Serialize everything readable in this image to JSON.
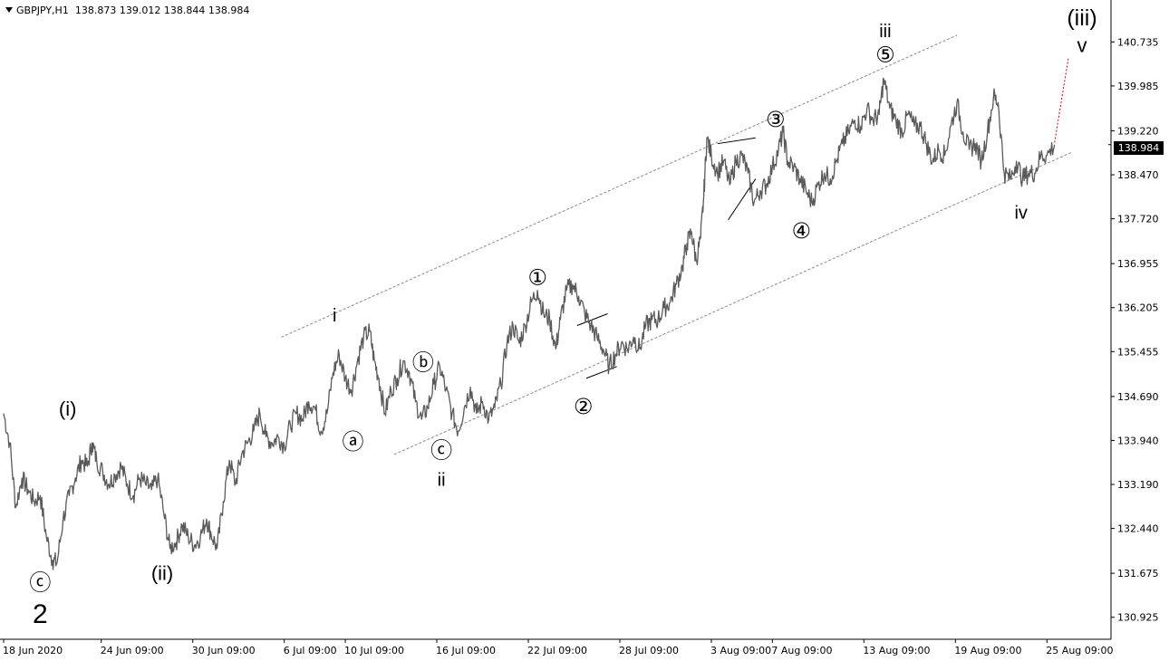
{
  "chart_header": {
    "symbol": "GBPJPY,H1",
    "open": "138.873",
    "high": "139.012",
    "low": "138.844",
    "close": "138.984"
  },
  "current_price": "138.984",
  "colors": {
    "background": "#ffffff",
    "price_line": "#5a5a5a",
    "channel": "#8a8a8a",
    "projection": "#d00000",
    "price_tag_bg": "#000000"
  },
  "chart_data": {
    "type": "line",
    "x_range": [
      "18 Jun 2020",
      "25 Aug 09:00"
    ],
    "ylim": [
      130.55,
      141.45
    ],
    "y_ticks": [
      "140.735",
      "139.985",
      "139.220",
      "138.470",
      "137.720",
      "136.955",
      "136.205",
      "135.455",
      "134.690",
      "133.940",
      "133.190",
      "132.440",
      "131.675",
      "130.925"
    ],
    "x_ticks": [
      {
        "label": "18 Jun 2020",
        "t": 0
      },
      {
        "label": "24 Jun 09:00",
        "t": 6.4
      },
      {
        "label": "30 Jun 09:00",
        "t": 12.4
      },
      {
        "label": "6 Jul 09:00",
        "t": 18.4
      },
      {
        "label": "10 Jul 09:00",
        "t": 22.4
      },
      {
        "label": "16 Jul 09:00",
        "t": 28.4
      },
      {
        "label": "22 Jul 09:00",
        "t": 34.4
      },
      {
        "label": "28 Jul 09:00",
        "t": 40.4
      },
      {
        "label": "3 Aug 09:00",
        "t": 46.4
      },
      {
        "label": "7 Aug 09:00",
        "t": 50.4
      },
      {
        "label": "13 Aug 09:00",
        "t": 56.4
      },
      {
        "label": "19 Aug 09:00",
        "t": 62.4
      },
      {
        "label": "25 Aug 09:00",
        "t": 68.4
      }
    ],
    "price_path": [
      [
        0.0,
        134.4
      ],
      [
        0.4,
        133.9
      ],
      [
        0.8,
        132.8
      ],
      [
        1.2,
        133.3
      ],
      [
        1.6,
        133.1
      ],
      [
        2.0,
        132.9
      ],
      [
        2.4,
        133.0
      ],
      [
        2.8,
        132.3
      ],
      [
        3.2,
        131.9
      ],
      [
        3.5,
        131.85
      ],
      [
        3.9,
        132.6
      ],
      [
        4.3,
        133.0
      ],
      [
        4.7,
        133.3
      ],
      [
        5.1,
        133.6
      ],
      [
        5.5,
        133.5
      ],
      [
        5.8,
        133.9
      ],
      [
        6.1,
        133.6
      ],
      [
        6.5,
        133.4
      ],
      [
        6.9,
        133.2
      ],
      [
        7.3,
        133.35
      ],
      [
        7.7,
        133.5
      ],
      [
        8.1,
        133.2
      ],
      [
        8.5,
        133.0
      ],
      [
        8.9,
        133.3
      ],
      [
        9.3,
        133.2
      ],
      [
        9.7,
        133.1
      ],
      [
        10.1,
        133.3
      ],
      [
        10.5,
        132.7
      ],
      [
        10.9,
        132.1
      ],
      [
        11.3,
        132.2
      ],
      [
        11.7,
        132.5
      ],
      [
        12.1,
        132.3
      ],
      [
        12.5,
        132.15
      ],
      [
        12.9,
        132.3
      ],
      [
        13.3,
        132.6
      ],
      [
        13.6,
        132.35
      ],
      [
        14.0,
        132.1
      ],
      [
        14.4,
        132.9
      ],
      [
        14.8,
        133.6
      ],
      [
        15.2,
        133.2
      ],
      [
        15.6,
        133.7
      ],
      [
        16.0,
        133.9
      ],
      [
        16.4,
        134.1
      ],
      [
        16.8,
        134.4
      ],
      [
        17.2,
        134.0
      ],
      [
        17.6,
        133.9
      ],
      [
        18.0,
        134.0
      ],
      [
        18.4,
        133.85
      ],
      [
        18.8,
        134.2
      ],
      [
        19.2,
        134.4
      ],
      [
        19.6,
        134.3
      ],
      [
        20.0,
        134.6
      ],
      [
        20.4,
        134.5
      ],
      [
        20.8,
        134.1
      ],
      [
        21.2,
        134.4
      ],
      [
        21.6,
        135.1
      ],
      [
        22.0,
        135.4
      ],
      [
        22.4,
        135.0
      ],
      [
        22.8,
        134.8
      ],
      [
        23.2,
        135.3
      ],
      [
        23.6,
        135.7
      ],
      [
        24.0,
        135.8
      ],
      [
        24.3,
        135.3
      ],
      [
        24.6,
        135.0
      ],
      [
        25.0,
        134.4
      ],
      [
        25.4,
        134.8
      ],
      [
        25.8,
        135.0
      ],
      [
        26.2,
        135.3
      ],
      [
        26.6,
        135.1
      ],
      [
        27.0,
        134.6
      ],
      [
        27.4,
        134.3
      ],
      [
        27.8,
        134.5
      ],
      [
        28.2,
        134.9
      ],
      [
        28.6,
        135.2
      ],
      [
        29.0,
        134.8
      ],
      [
        29.4,
        134.4
      ],
      [
        29.8,
        134.1
      ],
      [
        30.2,
        134.5
      ],
      [
        30.6,
        134.85
      ],
      [
        31.0,
        134.4
      ],
      [
        31.4,
        134.6
      ],
      [
        31.8,
        134.3
      ],
      [
        32.2,
        134.5
      ],
      [
        32.6,
        134.9
      ],
      [
        33.0,
        135.6
      ],
      [
        33.4,
        135.9
      ],
      [
        33.8,
        135.6
      ],
      [
        34.2,
        135.9
      ],
      [
        34.6,
        136.3
      ],
      [
        35.0,
        136.5
      ],
      [
        35.4,
        136.1
      ],
      [
        35.8,
        136.0
      ],
      [
        36.2,
        135.5
      ],
      [
        36.5,
        136.0
      ],
      [
        36.9,
        136.5
      ],
      [
        37.3,
        136.6
      ],
      [
        37.7,
        136.4
      ],
      [
        38.1,
        136.1
      ],
      [
        38.5,
        135.9
      ],
      [
        38.9,
        135.7
      ],
      [
        39.3,
        135.5
      ],
      [
        39.7,
        135.2
      ],
      [
        40.1,
        135.4
      ],
      [
        40.5,
        135.6
      ],
      [
        40.9,
        135.5
      ],
      [
        41.3,
        135.7
      ],
      [
        41.7,
        135.5
      ],
      [
        42.1,
        135.9
      ],
      [
        42.5,
        136.0
      ],
      [
        42.9,
        136.0
      ],
      [
        43.3,
        136.2
      ],
      [
        43.7,
        136.3
      ],
      [
        44.1,
        136.6
      ],
      [
        44.5,
        136.9
      ],
      [
        44.8,
        137.3
      ],
      [
        45.1,
        137.5
      ],
      [
        45.4,
        137.0
      ],
      [
        45.7,
        137.4
      ],
      [
        45.9,
        138.1
      ],
      [
        46.1,
        139.1
      ],
      [
        46.4,
        138.8
      ],
      [
        46.8,
        138.5
      ],
      [
        47.2,
        138.7
      ],
      [
        47.6,
        138.3
      ],
      [
        48.0,
        138.7
      ],
      [
        48.4,
        138.8
      ],
      [
        48.8,
        138.5
      ],
      [
        49.2,
        138.0
      ],
      [
        49.6,
        138.2
      ],
      [
        50.0,
        138.3
      ],
      [
        50.4,
        138.6
      ],
      [
        50.8,
        138.9
      ],
      [
        51.1,
        139.2
      ],
      [
        51.4,
        138.7
      ],
      [
        51.8,
        138.6
      ],
      [
        52.2,
        138.4
      ],
      [
        52.6,
        138.2
      ],
      [
        53.0,
        138.0
      ],
      [
        53.4,
        138.3
      ],
      [
        53.8,
        138.5
      ],
      [
        54.2,
        138.4
      ],
      [
        54.6,
        138.7
      ],
      [
        55.0,
        139.0
      ],
      [
        55.4,
        139.2
      ],
      [
        55.8,
        139.4
      ],
      [
        56.2,
        139.3
      ],
      [
        56.6,
        139.6
      ],
      [
        57.0,
        139.4
      ],
      [
        57.4,
        139.5
      ],
      [
        57.7,
        140.1
      ],
      [
        58.1,
        139.6
      ],
      [
        58.5,
        139.4
      ],
      [
        58.9,
        139.2
      ],
      [
        59.3,
        139.5
      ],
      [
        59.7,
        139.3
      ],
      [
        60.1,
        139.3
      ],
      [
        60.5,
        139.0
      ],
      [
        60.9,
        138.7
      ],
      [
        61.3,
        138.9
      ],
      [
        61.7,
        138.8
      ],
      [
        62.1,
        139.3
      ],
      [
        62.5,
        139.7
      ],
      [
        62.9,
        139.2
      ],
      [
        63.3,
        138.9
      ],
      [
        63.7,
        139.0
      ],
      [
        64.1,
        138.7
      ],
      [
        64.5,
        139.2
      ],
      [
        64.9,
        139.8
      ],
      [
        65.2,
        139.7
      ],
      [
        65.6,
        138.5
      ],
      [
        66.0,
        138.4
      ],
      [
        66.4,
        138.7
      ],
      [
        66.8,
        138.4
      ],
      [
        67.2,
        138.5
      ],
      [
        67.6,
        138.5
      ],
      [
        68.0,
        138.8
      ],
      [
        68.4,
        138.8
      ],
      [
        68.9,
        138.984
      ]
    ],
    "channel_lines": [
      {
        "name": "upper",
        "from": [
          18.2,
          135.7
        ],
        "to": [
          62.5,
          140.85
        ]
      },
      {
        "name": "lower",
        "from": [
          25.6,
          133.7
        ],
        "to": [
          70.0,
          138.85
        ]
      }
    ],
    "pattern_lines": [
      {
        "name": "wave2-upper",
        "from": [
          37.6,
          135.9
        ],
        "to": [
          39.6,
          136.1
        ]
      },
      {
        "name": "wave2-lower",
        "from": [
          38.2,
          135.0
        ],
        "to": [
          40.2,
          135.2
        ]
      },
      {
        "name": "wave4-upper",
        "from": [
          46.8,
          139.0
        ],
        "to": [
          49.3,
          139.1
        ]
      },
      {
        "name": "wave4-lower",
        "from": [
          47.5,
          137.7
        ],
        "to": [
          49.3,
          138.4
        ]
      }
    ],
    "projection_line": {
      "from": [
        68.9,
        139.02
      ],
      "to": [
        69.8,
        140.45
      ]
    },
    "wave_labels": [
      {
        "text": "2",
        "style": "big",
        "t": 2.4,
        "y": 130.95
      },
      {
        "text": "ⓒ",
        "style": "circled",
        "t": 2.4,
        "y": 131.5
      },
      {
        "text": "(i)",
        "style": "paren",
        "t": 4.2,
        "y": 134.45
      },
      {
        "text": "(ii)",
        "style": "paren",
        "t": 10.4,
        "y": 131.65
      },
      {
        "text": "i",
        "style": "plain",
        "t": 21.7,
        "y": 136.05
      },
      {
        "text": "ⓐ",
        "style": "circled",
        "t": 22.9,
        "y": 133.9
      },
      {
        "text": "ⓑ",
        "style": "circled",
        "t": 27.5,
        "y": 135.25
      },
      {
        "text": "ⓒ",
        "style": "circled",
        "t": 28.7,
        "y": 133.75
      },
      {
        "text": "ii",
        "style": "plain",
        "t": 28.7,
        "y": 133.25
      },
      {
        "text": "①",
        "style": "circled",
        "t": 35.0,
        "y": 136.7
      },
      {
        "text": "②",
        "style": "circled",
        "t": 38.0,
        "y": 134.5
      },
      {
        "text": "③",
        "style": "circled",
        "t": 50.6,
        "y": 139.4
      },
      {
        "text": "④",
        "style": "circled",
        "t": 52.3,
        "y": 137.5
      },
      {
        "text": "⑤",
        "style": "circled",
        "t": 57.8,
        "y": 140.5
      },
      {
        "text": "iii",
        "style": "plain",
        "t": 57.8,
        "y": 140.9
      },
      {
        "text": "iv",
        "style": "plain",
        "t": 66.7,
        "y": 137.8
      },
      {
        "text": "(iii)",
        "style": "paren-big",
        "t": 70.7,
        "y": 141.12
      },
      {
        "text": "v",
        "style": "plain-big",
        "t": 70.7,
        "y": 140.65
      }
    ]
  }
}
